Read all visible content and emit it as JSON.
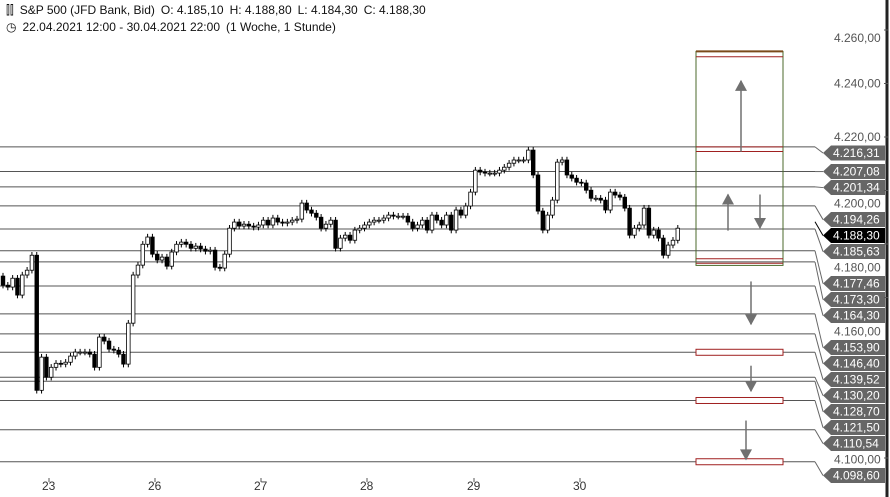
{
  "header": {
    "icon": "candlestick-icon",
    "instrument": "S&P 500 (JFD Bank, Bid)",
    "open": "O: 4.185,10",
    "high": "H: 4.188,80",
    "low": "L: 4.184,30",
    "close": "C: 4.188,30",
    "clock_icon": "clock-icon",
    "range": "22.04.2021 12:00 - 30.04.2021 22:00",
    "period": "(1 Woche, 1 Stunde)"
  },
  "chart_data": {
    "type": "candlestick",
    "x_tick_labels": [
      "23",
      "26",
      "27",
      "28",
      "29",
      "30"
    ],
    "y_tick_labels": [
      "4.260,00",
      "4.240,00",
      "4.220,00",
      "4.200,00",
      "4.180,00",
      "4.160,00",
      "4.100,00"
    ],
    "y_ticks": [
      4260,
      4240,
      4220,
      4200,
      4180,
      4160,
      4100
    ],
    "ylim": [
      4090,
      4271
    ],
    "grid": false,
    "first_open": 4168.0,
    "closes": [
      4164.6,
      4163.9,
      4167.2,
      4160.9,
      4168.4,
      4170.2,
      4175.8,
      4125.3,
      4137.7,
      4130.2,
      4133.9,
      4135.4,
      4135.1,
      4135.8,
      4138.1,
      4139.6,
      4139.6,
      4139.6,
      4138.8,
      4133.9,
      4145.2,
      4143.7,
      4140.7,
      4140.3,
      4138.8,
      4135.1,
      4150.4,
      4168.4,
      4172.1,
      4179.9,
      4182.6,
      4176.2,
      4174.0,
      4175.1,
      4171.7,
      4177.0,
      4179.9,
      4180.7,
      4179.9,
      4178.4,
      4179.2,
      4178.1,
      4177.3,
      4177.7,
      4171.3,
      4171.0,
      4176.2,
      4185.9,
      4188.2,
      4186.7,
      4187.4,
      4186.7,
      4186.3,
      4187.1,
      4188.9,
      4187.1,
      4189.7,
      4188.2,
      4187.8,
      4188.2,
      4188.9,
      4189.3,
      4195.3,
      4192.7,
      4191.5,
      4190.0,
      4185.9,
      4187.4,
      4188.9,
      4178.4,
      4182.2,
      4183.3,
      4181.4,
      4185.2,
      4185.9,
      4187.1,
      4188.2,
      4188.9,
      4188.9,
      4189.7,
      4190.8,
      4190.4,
      4190.4,
      4190.4,
      4188.2,
      4185.9,
      4187.1,
      4188.9,
      4185.2,
      4190.8,
      4188.9,
      4187.1,
      4190.8,
      4185.2,
      4192.7,
      4190.8,
      4194.2,
      4199.4,
      4207.6,
      4206.9,
      4206.5,
      4206.5,
      4206.5,
      4207.6,
      4208.7,
      4210.2,
      4211.4,
      4211.4,
      4211.4,
      4215.1,
      4205.8,
      4192.3,
      4185.2,
      4190.8,
      4196.4,
      4210.6,
      4211.4,
      4205.8,
      4204.6,
      4203.1,
      4202.8,
      4200.1,
      4197.1,
      4197.1,
      4196.4,
      4192.7,
      4199.4,
      4198.3,
      4197.5,
      4193.4,
      4183.3,
      4185.9,
      4187.1,
      4193.4,
      4183.3,
      4185.2,
      4182.2,
      4175.8,
      4179.6,
      4181.4,
      4185.9
    ],
    "current_price": {
      "value": 4188.3,
      "label": "4.188,30"
    },
    "levels": [
      {
        "value": 4216.31,
        "label": "4.216,31"
      },
      {
        "value": 4207.08,
        "label": "4.207,08"
      },
      {
        "value": 4201.34,
        "label": "4.201,34"
      },
      {
        "value": 4194.26,
        "label": "4.194,26"
      },
      {
        "value": 4185.63,
        "label": "4.185,63"
      },
      {
        "value": 4177.46,
        "label": "4.177,46"
      },
      {
        "value": 4173.3,
        "label": "4.173,30"
      },
      {
        "value": 4164.3,
        "label": "4.164,30"
      },
      {
        "value": 4153.9,
        "label": "4.153,90"
      },
      {
        "value": 4146.4,
        "label": "4.146,40"
      },
      {
        "value": 4139.52,
        "label": "4.139,52"
      },
      {
        "value": 4130.2,
        "label": "4.130,20"
      },
      {
        "value": 4128.7,
        "label": "4.128,70"
      },
      {
        "value": 4121.5,
        "label": "4.121,50"
      },
      {
        "value": 4110.54,
        "label": "4.110,54"
      },
      {
        "value": 4098.6,
        "label": "4.098,60"
      }
    ],
    "target_zone": {
      "top": 4252.0,
      "bottom": 4172.0,
      "bands": [
        4252.0,
        4250.0,
        4216.3,
        4214.6,
        4174.5,
        4172.8
      ]
    },
    "target_boxes": [
      4139.52,
      4121.5,
      4098.6
    ],
    "arrows": [
      {
        "dir": "up",
        "from": 4214.5,
        "to": 4241.0
      },
      {
        "dir": "up",
        "from": 4185.0,
        "to": 4198.5
      },
      {
        "dir": "down",
        "from": 4198.5,
        "to": 4186.0
      },
      {
        "dir": "down",
        "from": 4166.0,
        "to": 4150.0
      },
      {
        "dir": "down",
        "from": 4134.5,
        "to": 4125.0
      },
      {
        "dir": "down",
        "from": 4114.0,
        "to": 4099.5
      }
    ],
    "colors": {
      "up": "#ffffff",
      "down": "#000000",
      "level_line": "#555555",
      "label_bg": "#666666",
      "zone_border": "#4b6a2b",
      "band": "#a02020",
      "arrow": "#707070"
    }
  }
}
